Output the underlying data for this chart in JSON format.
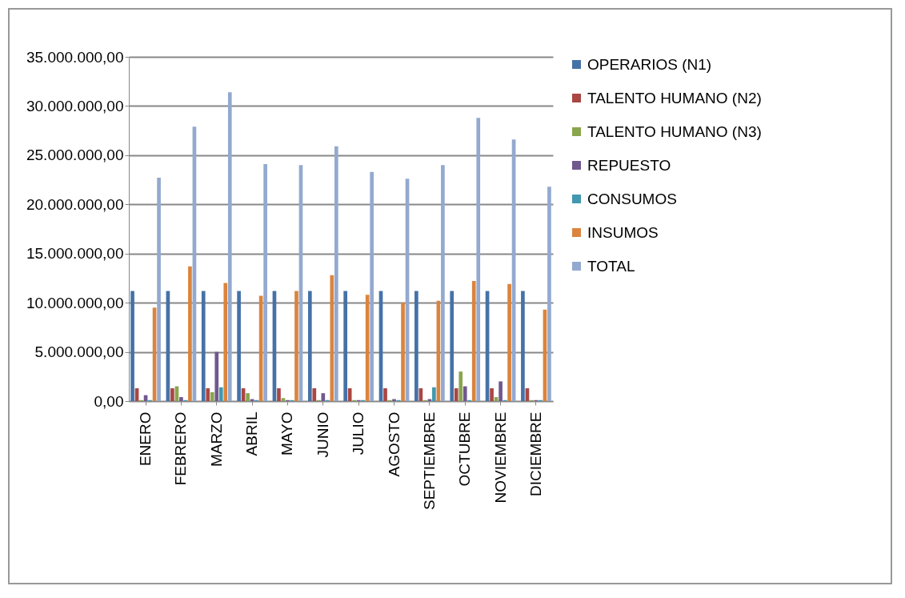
{
  "chart_data": {
    "type": "bar",
    "categories": [
      "ENERO",
      "FEBRERO",
      "MARZO",
      "ABRIL",
      "MAYO",
      "JUNIO",
      "JULIO",
      "AGOSTO",
      "SEPTIEMBRE",
      "OCTUBRE",
      "NOVIEMBRE",
      "DICIEMBRE"
    ],
    "series": [
      {
        "name": "OPERARIOS (N1)",
        "color": "#4572a7",
        "values": [
          11200000,
          11200000,
          11200000,
          11200000,
          11200000,
          11200000,
          11200000,
          11200000,
          11200000,
          11200000,
          11200000,
          11200000
        ]
      },
      {
        "name": "TALENTO HUMANO (N2)",
        "color": "#aa4643",
        "values": [
          1300000,
          1300000,
          1300000,
          1300000,
          1300000,
          1300000,
          1300000,
          1300000,
          1300000,
          1300000,
          1300000,
          1300000
        ]
      },
      {
        "name": "TALENTO HUMANO (N3)",
        "color": "#89a54e",
        "values": [
          100000,
          1500000,
          900000,
          800000,
          300000,
          100000,
          100000,
          100000,
          100000,
          3000000,
          400000,
          100000
        ]
      },
      {
        "name": "REPUESTO",
        "color": "#71588f",
        "values": [
          600000,
          400000,
          5000000,
          200000,
          100000,
          800000,
          100000,
          200000,
          200000,
          1500000,
          2000000,
          100000
        ]
      },
      {
        "name": "CONSUMOS",
        "color": "#4198af",
        "values": [
          100000,
          100000,
          1400000,
          100000,
          100000,
          100000,
          100000,
          100000,
          1400000,
          100000,
          100000,
          100000
        ]
      },
      {
        "name": "INSUMOS",
        "color": "#db843d",
        "values": [
          9500000,
          13700000,
          12000000,
          10700000,
          11200000,
          12800000,
          10800000,
          10000000,
          10200000,
          12200000,
          11900000,
          9300000
        ]
      },
      {
        "name": "TOTAL",
        "color": "#93a9cf",
        "values": [
          22700000,
          27900000,
          31400000,
          24100000,
          24000000,
          25900000,
          23300000,
          22600000,
          24000000,
          28800000,
          26600000,
          21800000
        ]
      }
    ],
    "ylim": [
      0,
      35000000
    ],
    "yticks": [
      {
        "value": 0,
        "label": "0,00"
      },
      {
        "value": 5000000,
        "label": "5.000.000,00"
      },
      {
        "value": 10000000,
        "label": "10.000.000,00"
      },
      {
        "value": 15000000,
        "label": "15.000.000,00"
      },
      {
        "value": 20000000,
        "label": "20.000.000,00"
      },
      {
        "value": 25000000,
        "label": "25.000.000,00"
      },
      {
        "value": 30000000,
        "label": "30.000.000,00"
      },
      {
        "value": 35000000,
        "label": "35.000.000,00"
      }
    ],
    "grid": "y",
    "legend": "right"
  }
}
